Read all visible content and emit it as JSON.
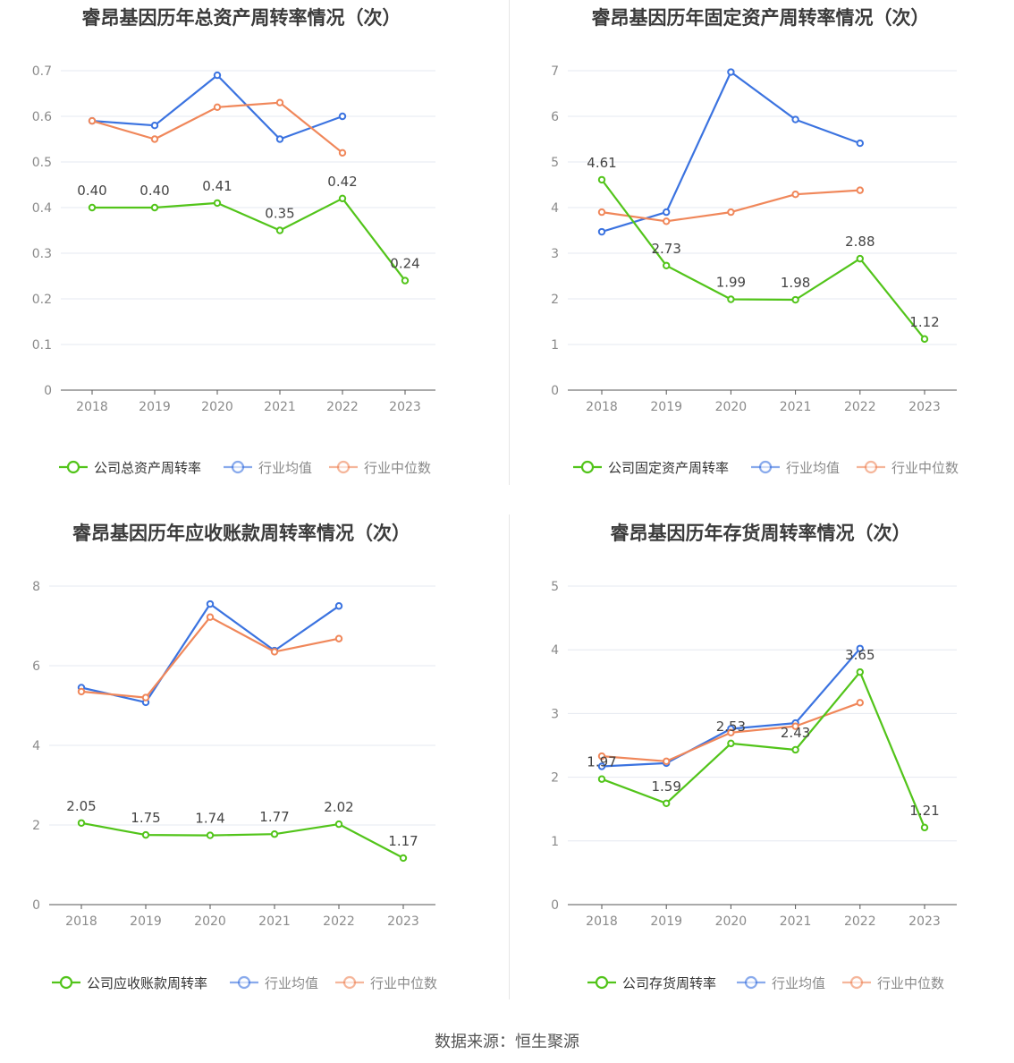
{
  "source_label": "数据来源：恒生聚源",
  "colors": {
    "company": "#52c41a",
    "avg": "#3b73e0",
    "median": "#f0875a",
    "grid": "#e5e8f0",
    "axis_text": "#8a8a8a"
  },
  "legend_labels": {
    "avg": "行业均值",
    "median": "行业中位数"
  },
  "chart_data": [
    {
      "type": "line",
      "title": "睿昂基因历年总资产周转率情况（次）",
      "categories": [
        "2018",
        "2019",
        "2020",
        "2021",
        "2022",
        "2023"
      ],
      "ylim": [
        0,
        0.7
      ],
      "yticks": [
        "0",
        "0.1",
        "0.2",
        "0.3",
        "0.4",
        "0.5",
        "0.6",
        "0.7"
      ],
      "ytick_values": [
        0,
        0.1,
        0.2,
        0.3,
        0.4,
        0.5,
        0.6,
        0.7
      ],
      "grid": true,
      "legend_position": "bottom",
      "series": [
        {
          "key": "company",
          "name": "公司总资产周转率",
          "values": [
            0.4,
            0.4,
            0.41,
            0.35,
            0.42,
            0.24
          ],
          "labels": [
            "0.40",
            "0.40",
            "0.41",
            "0.35",
            "0.42",
            "0.24"
          ]
        },
        {
          "key": "avg",
          "name": "行业均值",
          "values": [
            0.59,
            0.58,
            0.69,
            0.55,
            0.6,
            null
          ]
        },
        {
          "key": "median",
          "name": "行业中位数",
          "values": [
            0.59,
            0.55,
            0.62,
            0.63,
            0.52,
            null
          ]
        }
      ]
    },
    {
      "type": "line",
      "title": "睿昂基因历年固定资产周转率情况（次）",
      "categories": [
        "2018",
        "2019",
        "2020",
        "2021",
        "2022",
        "2023"
      ],
      "ylim": [
        0,
        7
      ],
      "yticks": [
        "0",
        "1",
        "2",
        "3",
        "4",
        "5",
        "6",
        "7"
      ],
      "ytick_values": [
        0,
        1,
        2,
        3,
        4,
        5,
        6,
        7
      ],
      "grid": true,
      "legend_position": "bottom",
      "series": [
        {
          "key": "company",
          "name": "公司固定资产周转率",
          "values": [
            4.61,
            2.73,
            1.99,
            1.98,
            2.88,
            1.12
          ],
          "labels": [
            "4.61",
            "2.73",
            "1.99",
            "1.98",
            "2.88",
            "1.12"
          ]
        },
        {
          "key": "avg",
          "name": "行业均值",
          "values": [
            3.47,
            3.9,
            6.97,
            5.93,
            5.41,
            null
          ]
        },
        {
          "key": "median",
          "name": "行业中位数",
          "values": [
            3.9,
            3.7,
            3.9,
            4.29,
            4.38,
            null
          ]
        }
      ]
    },
    {
      "type": "line",
      "title": "睿昂基因历年应收账款周转率情况（次）",
      "categories": [
        "2018",
        "2019",
        "2020",
        "2021",
        "2022",
        "2023"
      ],
      "ylim": [
        0,
        8
      ],
      "yticks": [
        "0",
        "2",
        "4",
        "6",
        "8"
      ],
      "ytick_values": [
        0,
        2,
        4,
        6,
        8
      ],
      "grid": true,
      "legend_position": "bottom",
      "series": [
        {
          "key": "company",
          "name": "公司应收账款周转率",
          "values": [
            2.05,
            1.75,
            1.74,
            1.77,
            2.02,
            1.17
          ],
          "labels": [
            "2.05",
            "1.75",
            "1.74",
            "1.77",
            "2.02",
            "1.17"
          ]
        },
        {
          "key": "avg",
          "name": "行业均值",
          "values": [
            5.45,
            5.08,
            7.55,
            6.38,
            7.5,
            null
          ]
        },
        {
          "key": "median",
          "name": "行业中位数",
          "values": [
            5.35,
            5.2,
            7.22,
            6.35,
            6.68,
            null
          ]
        }
      ]
    },
    {
      "type": "line",
      "title": "睿昂基因历年存货周转率情况（次）",
      "categories": [
        "2018",
        "2019",
        "2020",
        "2021",
        "2022",
        "2023"
      ],
      "ylim": [
        0,
        5
      ],
      "yticks": [
        "0",
        "1",
        "2",
        "3",
        "4",
        "5"
      ],
      "ytick_values": [
        0,
        1,
        2,
        3,
        4,
        5
      ],
      "grid": true,
      "legend_position": "bottom",
      "series": [
        {
          "key": "company",
          "name": "公司存货周转率",
          "values": [
            1.97,
            1.59,
            2.53,
            2.43,
            3.65,
            1.21
          ],
          "labels": [
            "1.97",
            "1.59",
            "2.53",
            "2.43",
            "3.65",
            "1.21"
          ]
        },
        {
          "key": "avg",
          "name": "行业均值",
          "values": [
            2.17,
            2.22,
            2.76,
            2.85,
            4.02,
            null
          ]
        },
        {
          "key": "median",
          "name": "行业中位数",
          "values": [
            2.33,
            2.25,
            2.7,
            2.8,
            3.17,
            null
          ]
        }
      ]
    }
  ]
}
